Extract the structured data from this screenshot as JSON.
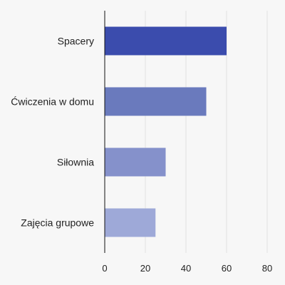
{
  "chart_data": {
    "type": "bar",
    "orientation": "horizontal",
    "title": "",
    "xlabel": "",
    "ylabel": "",
    "categories": [
      "Spacery",
      "Ćwiczenia w domu",
      "Siłownia",
      "Zajęcia grupowe"
    ],
    "values": [
      60,
      50,
      30,
      25
    ],
    "colors": [
      "#3b4cad",
      "#6a7abd",
      "#8591cb",
      "#9ea9d8"
    ],
    "xlim": [
      0,
      80
    ],
    "x_ticks": [
      "0",
      "20",
      "40",
      "60",
      "80"
    ],
    "grid": true,
    "legend": "none"
  },
  "colors": {
    "background": "#f7f7f7",
    "grid": "#e2e2e2",
    "axis": "#111111",
    "text": "#222222"
  }
}
